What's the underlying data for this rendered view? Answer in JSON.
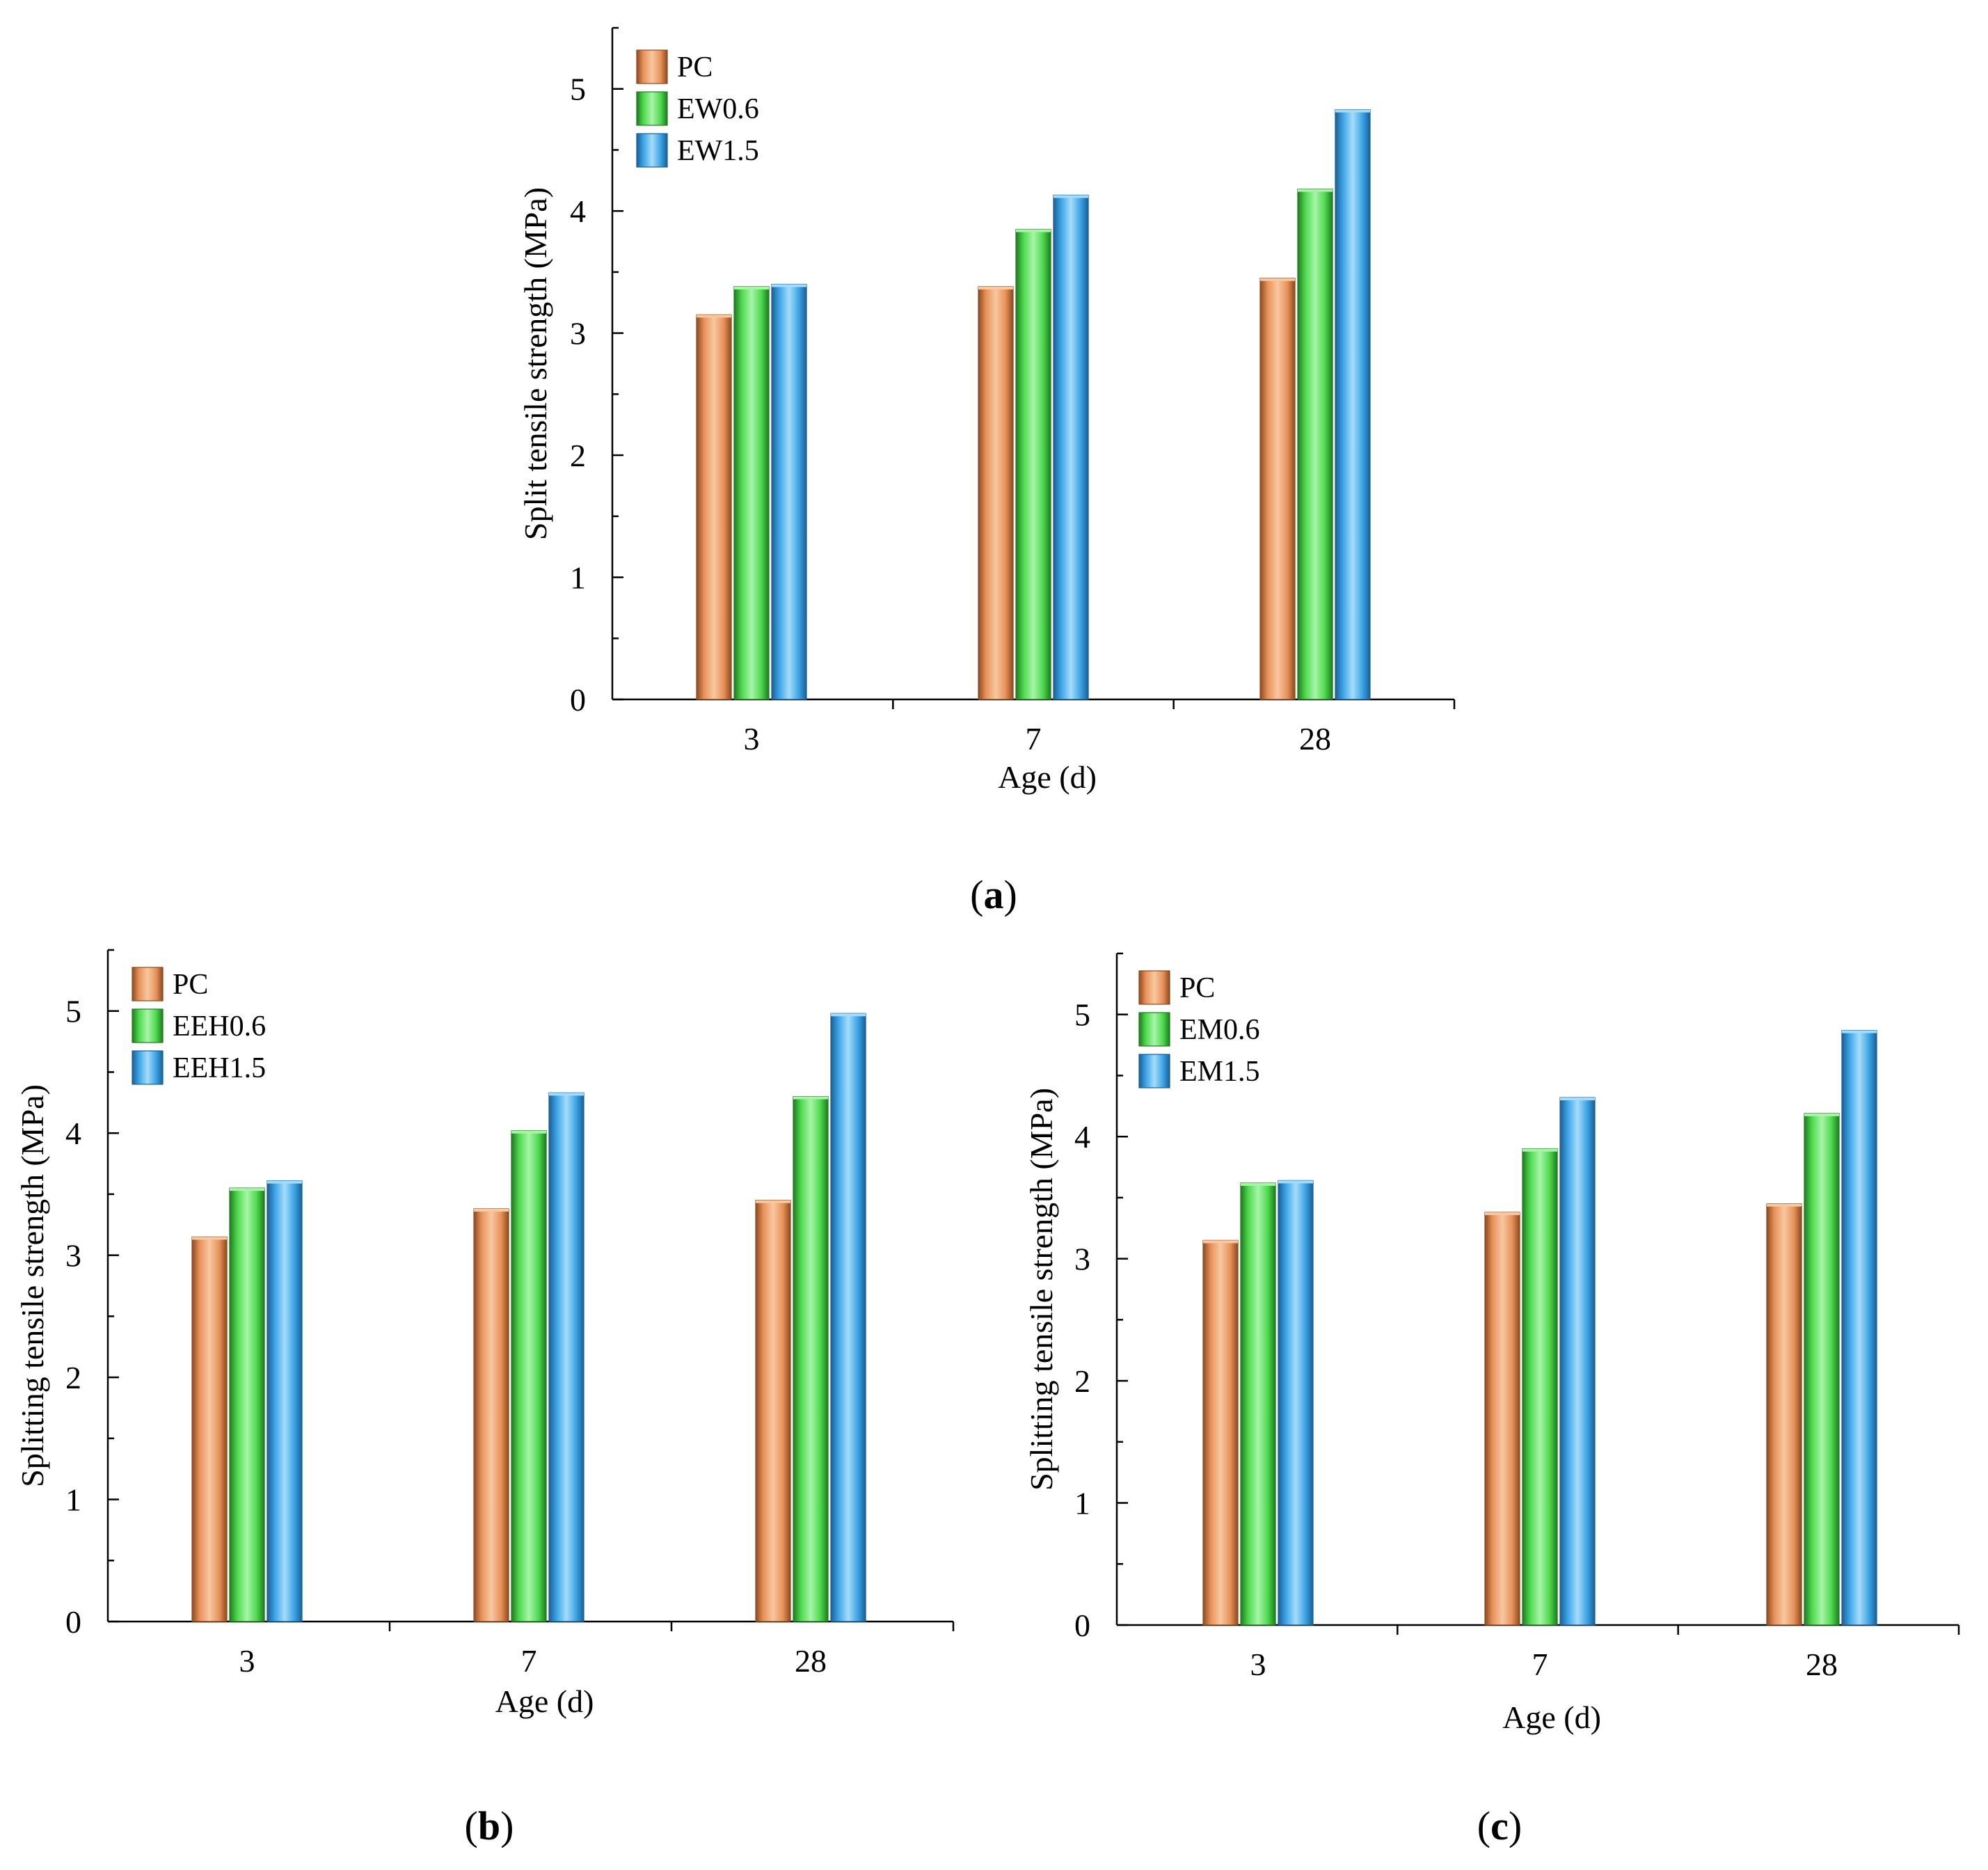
{
  "chart_data": [
    {
      "panel": "a",
      "type": "bar",
      "xlabel": "Age (d)",
      "ylabel": "Split tensile strength (MPa)",
      "ylim": [
        0,
        5.5
      ],
      "yticks": [
        "0",
        "1",
        "2",
        "3",
        "4",
        "5"
      ],
      "categories": [
        "3",
        "7",
        "28"
      ],
      "legend_position": "top-left",
      "series": [
        {
          "name": "PC",
          "values": [
            3.15,
            3.38,
            3.45
          ]
        },
        {
          "name": "EW0.6",
          "values": [
            3.38,
            3.85,
            4.18
          ]
        },
        {
          "name": "EW1.5",
          "values": [
            3.4,
            4.13,
            4.83
          ]
        }
      ]
    },
    {
      "panel": "b",
      "type": "bar",
      "xlabel": "Age (d)",
      "ylabel": "Splitting tensile strength (MPa)",
      "ylim": [
        0,
        5.5
      ],
      "yticks": [
        "0",
        "1",
        "2",
        "3",
        "4",
        "5"
      ],
      "categories": [
        "3",
        "7",
        "28"
      ],
      "legend_position": "top-left",
      "series": [
        {
          "name": "PC",
          "values": [
            3.15,
            3.38,
            3.45
          ]
        },
        {
          "name": "EEH0.6",
          "values": [
            3.55,
            4.02,
            4.3
          ]
        },
        {
          "name": "EEH1.5",
          "values": [
            3.61,
            4.33,
            4.98
          ]
        }
      ]
    },
    {
      "panel": "c",
      "type": "bar",
      "xlabel": "Age (d)",
      "ylabel": "Splitting tensile strength (MPa)",
      "ylim": [
        0,
        5.5
      ],
      "yticks": [
        "0",
        "1",
        "2",
        "3",
        "4",
        "5"
      ],
      "categories": [
        "3",
        "7",
        "28"
      ],
      "legend_position": "top-left",
      "series": [
        {
          "name": "PC",
          "values": [
            3.15,
            3.38,
            3.45
          ]
        },
        {
          "name": "EM0.6",
          "values": [
            3.62,
            3.9,
            4.19
          ]
        },
        {
          "name": "EM1.5",
          "values": [
            3.64,
            4.32,
            4.87
          ]
        }
      ]
    }
  ],
  "panel_labels": [
    {
      "open": "(",
      "letter": "a",
      "close": ")"
    },
    {
      "open": "(",
      "letter": "b",
      "close": ")"
    },
    {
      "open": "(",
      "letter": "c",
      "close": ")"
    }
  ],
  "colors": {
    "series": [
      "#e8925a",
      "#4ed94e",
      "#3ca4e6"
    ],
    "series_dark": [
      "#8c4a1e",
      "#1f7a1f",
      "#1a5f94"
    ],
    "series_light": [
      "#f8c8a0",
      "#a8f5a8",
      "#a6dcfb"
    ]
  }
}
